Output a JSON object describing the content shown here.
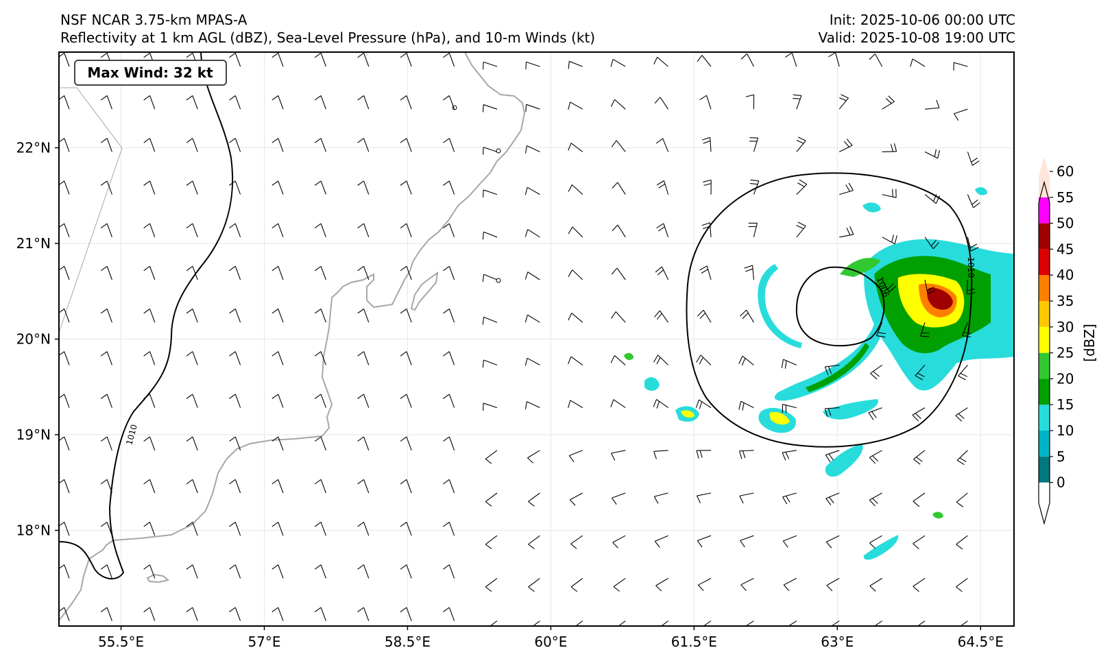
{
  "header": {
    "model": "NSF NCAR 3.75-km MPAS-A",
    "description": "Reflectivity at 1 km AGL (dBZ), Sea-Level Pressure (hPa), and 10-m Winds (kt)",
    "init": "Init: 2025-10-06 00:00 UTC",
    "valid": "Valid: 2025-10-08 19:00 UTC"
  },
  "map": {
    "extent": {
      "lon_min": 54.85,
      "lon_max": 64.85,
      "lat_min": 17.0,
      "lat_max": 23.0
    },
    "lon_ticks": [
      55.5,
      57.0,
      58.5,
      60.0,
      61.5,
      63.0,
      64.5
    ],
    "lon_tick_labels": [
      "55.5°E",
      "57°E",
      "58.5°E",
      "60°E",
      "61.5°E",
      "63°E",
      "64.5°E"
    ],
    "lat_ticks": [
      22,
      21,
      20,
      19,
      18
    ],
    "lat_tick_labels": [
      "22°N",
      "21°N",
      "20°N",
      "19°N",
      "18°N"
    ],
    "max_wind_label": "Max Wind: 32 kt",
    "isobar_labels": [
      "1010",
      "1010",
      "1006"
    ],
    "storm_center": {
      "lon": 63.0,
      "lat": 20.4
    }
  },
  "colorbar": {
    "unit_label": "[dBZ]",
    "levels": [
      "0",
      "5",
      "10",
      "15",
      "20",
      "25",
      "30",
      "35",
      "40",
      "45",
      "50",
      "55",
      "60"
    ],
    "colors": [
      "#ffffff",
      "#00787d",
      "#00b4c8",
      "#28dcdc",
      "#00a000",
      "#32c832",
      "#ffff00",
      "#ffc800",
      "#ff8000",
      "#dc0000",
      "#a00000",
      "#ff00ff",
      "#ffe4d8"
    ]
  }
}
